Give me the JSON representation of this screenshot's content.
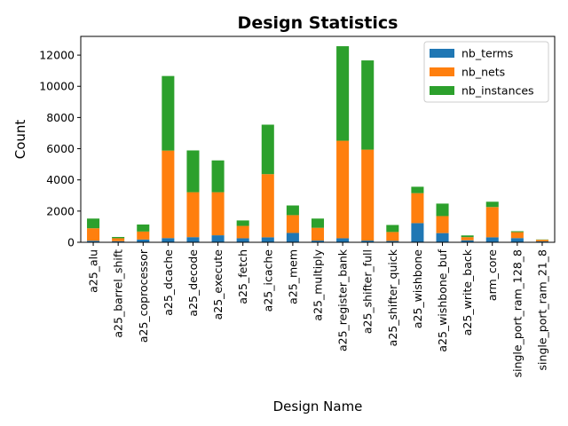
{
  "chart_data": {
    "type": "bar",
    "stacked": true,
    "title": "Design Statistics",
    "xlabel": "Design Name",
    "ylabel": "Count",
    "ylim": [
      0,
      13200
    ],
    "yticks": [
      0,
      2000,
      4000,
      6000,
      8000,
      10000,
      12000
    ],
    "grid": false,
    "legend_position": "top-right",
    "categories": [
      "a25_alu",
      "a25_barrel_shift",
      "a25_coprocessor",
      "a25_dcache",
      "a25_decode",
      "a25_execute",
      "a25_fetch",
      "a25_icache",
      "a25_mem",
      "a25_multiply",
      "a25_register_bank",
      "a25_shifter_full",
      "a25_shifter_quick",
      "a25_wishbone",
      "a25_wishbone_buf",
      "a25_write_back",
      "arm_core",
      "single_port_ram_128_8",
      "single_port_ram_21_8"
    ],
    "series": [
      {
        "name": "nb_terms",
        "color": "#1f77b4",
        "values": [
          100,
          70,
          180,
          270,
          330,
          450,
          260,
          320,
          600,
          110,
          260,
          110,
          90,
          1230,
          590,
          130,
          320,
          270,
          60
        ]
      },
      {
        "name": "nb_nets",
        "color": "#ff7f0e",
        "values": [
          800,
          190,
          510,
          5610,
          2880,
          2760,
          790,
          4050,
          1140,
          820,
          6250,
          5830,
          570,
          1920,
          1090,
          200,
          1940,
          380,
          100
        ]
      },
      {
        "name": "nb_instances",
        "color": "#2ca02c",
        "values": [
          620,
          80,
          450,
          4780,
          2680,
          2040,
          350,
          3170,
          620,
          590,
          6060,
          5720,
          450,
          410,
          800,
          110,
          340,
          60,
          20
        ]
      }
    ]
  }
}
